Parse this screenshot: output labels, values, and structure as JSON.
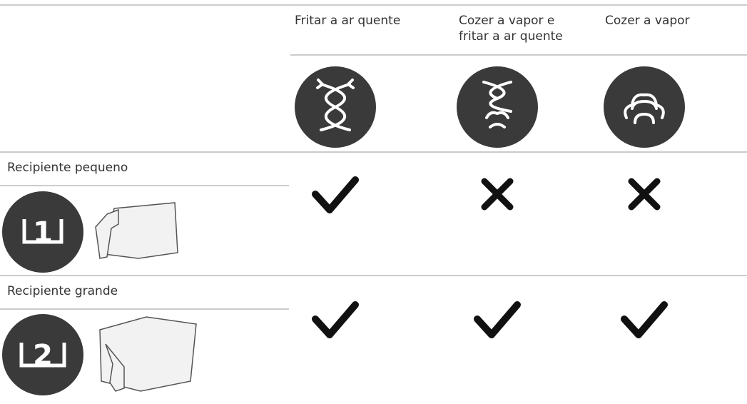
{
  "table": {
    "columns": [
      {
        "label": "Fritar a ar quente"
      },
      {
        "label": "Cozer a vapor e fritar a ar quente"
      },
      {
        "label": "Cozer a vapor"
      }
    ],
    "rows": [
      {
        "label": "Recipiente pequeno",
        "size": "1",
        "compatible": [
          true,
          false,
          false
        ]
      },
      {
        "label": "Recipiente grande",
        "size": "2",
        "compatible": [
          true,
          true,
          true
        ]
      }
    ]
  }
}
